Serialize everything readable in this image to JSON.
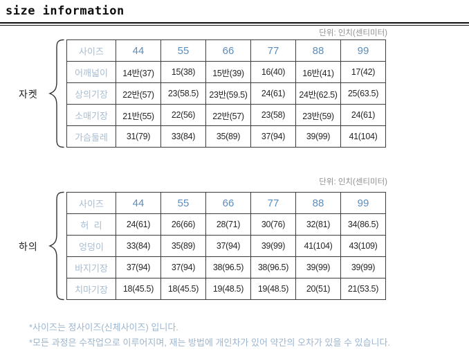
{
  "title": "size information",
  "unit_label": "단위: 인치(센티미터)",
  "colors": {
    "accent_blue": "#5b8cba",
    "label_blue": "#a5bdd3",
    "note_blue": "#9cb5cf",
    "value_text": "#252525",
    "border": "#3b3b3b",
    "unit_gray": "#8f8f8f"
  },
  "tables": [
    {
      "group_label": "자켓",
      "header": {
        "label": "사이즈",
        "sizes": [
          "44",
          "55",
          "66",
          "77",
          "88",
          "99"
        ]
      },
      "rows": [
        {
          "label": "어깨넓이",
          "values": [
            "14반(37)",
            "15(38)",
            "15반(39)",
            "16(40)",
            "16반(41)",
            "17(42)"
          ]
        },
        {
          "label": "상의기장",
          "values": [
            "22반(57)",
            "23(58.5)",
            "23반(59.5)",
            "24(61)",
            "24반(62.5)",
            "25(63.5)"
          ]
        },
        {
          "label": "소매기장",
          "values": [
            "21반(55)",
            "22(56)",
            "22반(57)",
            "23(58)",
            "23반(59)",
            "24(61)"
          ]
        },
        {
          "label": "가슴둘레",
          "values": [
            "31(79)",
            "33(84)",
            "35(89)",
            "37(94)",
            "39(99)",
            "41(104)"
          ]
        }
      ]
    },
    {
      "group_label": "하의",
      "header": {
        "label": "사이즈",
        "sizes": [
          "44",
          "55",
          "66",
          "77",
          "88",
          "99"
        ]
      },
      "rows": [
        {
          "label": "허  리",
          "values": [
            "24(61)",
            "26(66)",
            "28(71)",
            "30(76)",
            "32(81)",
            "34(86.5)"
          ]
        },
        {
          "label": "엉덩이",
          "values": [
            "33(84)",
            "35(89)",
            "37(94)",
            "39(99)",
            "41(104)",
            "43(109)"
          ]
        },
        {
          "label": "바지기장",
          "values": [
            "37(94)",
            "37(94)",
            "38(96.5)",
            "38(96.5)",
            "39(99)",
            "39(99)"
          ]
        },
        {
          "label": "치마기장",
          "values": [
            "18(45.5)",
            "18(45.5)",
            "19(48.5)",
            "19(48.5)",
            "20(51)",
            "21(53.5)"
          ]
        }
      ]
    }
  ],
  "notes": [
    "*사이즈는 정사이즈(신체사이즈) 입니다.",
    "*모든 과정은 수작업으로 이루어지며,  재는 방법에 개인차가 있어 약간의 오차가 있을 수 있습니다."
  ]
}
